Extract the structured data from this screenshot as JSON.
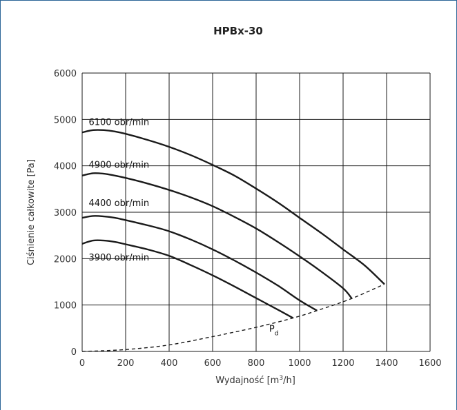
{
  "chart_data": {
    "type": "line",
    "title": "HPBx-30",
    "xlabel_prefix": "Wydajność [m",
    "xlabel_sup": "3",
    "xlabel_suffix": "/h]",
    "ylabel": "Ciśnienie całkowite [Pa]",
    "xlim": [
      0,
      1600
    ],
    "ylim": [
      0,
      6000
    ],
    "xticks": [
      0,
      200,
      400,
      600,
      800,
      1000,
      1200,
      1400,
      1600
    ],
    "yticks": [
      0,
      1000,
      2000,
      3000,
      4000,
      5000,
      6000
    ],
    "grid": true,
    "series": [
      {
        "name": "6100 obr/min",
        "label_at": [
          30,
          4880
        ],
        "x": [
          0,
          50,
          100,
          150,
          200,
          300,
          400,
          500,
          600,
          700,
          800,
          900,
          1000,
          1100,
          1200,
          1300,
          1390
        ],
        "y": [
          4720,
          4770,
          4770,
          4740,
          4690,
          4560,
          4410,
          4230,
          4020,
          3790,
          3510,
          3210,
          2880,
          2550,
          2200,
          1850,
          1450
        ]
      },
      {
        "name": "4900 obr/min",
        "label_at": [
          30,
          3960
        ],
        "x": [
          0,
          50,
          100,
          150,
          200,
          300,
          400,
          500,
          600,
          700,
          800,
          900,
          1000,
          1100,
          1200,
          1240
        ],
        "y": [
          3790,
          3840,
          3830,
          3790,
          3740,
          3620,
          3480,
          3320,
          3130,
          2900,
          2650,
          2360,
          2050,
          1720,
          1360,
          1140
        ]
      },
      {
        "name": "4400 obr/min",
        "label_at": [
          30,
          3130
        ],
        "x": [
          0,
          50,
          100,
          150,
          200,
          300,
          400,
          500,
          600,
          700,
          800,
          900,
          1000,
          1080
        ],
        "y": [
          2880,
          2920,
          2910,
          2880,
          2830,
          2720,
          2590,
          2410,
          2200,
          1960,
          1700,
          1420,
          1100,
          880
        ]
      },
      {
        "name": "3900 obr/min",
        "label_at": [
          30,
          1960
        ],
        "x": [
          0,
          50,
          100,
          150,
          200,
          300,
          400,
          500,
          600,
          700,
          800,
          900,
          970
        ],
        "y": [
          2320,
          2390,
          2390,
          2360,
          2310,
          2200,
          2060,
          1860,
          1640,
          1400,
          1150,
          900,
          720
        ]
      },
      {
        "name": "Pd",
        "style": "dashed",
        "label_main": "P",
        "label_sub": "d",
        "label_at": [
          860,
          420
        ],
        "x": [
          0,
          200,
          400,
          600,
          800,
          970,
          1080,
          1240,
          1390
        ],
        "y": [
          0,
          40,
          140,
          320,
          520,
          720,
          880,
          1140,
          1450
        ]
      }
    ]
  }
}
